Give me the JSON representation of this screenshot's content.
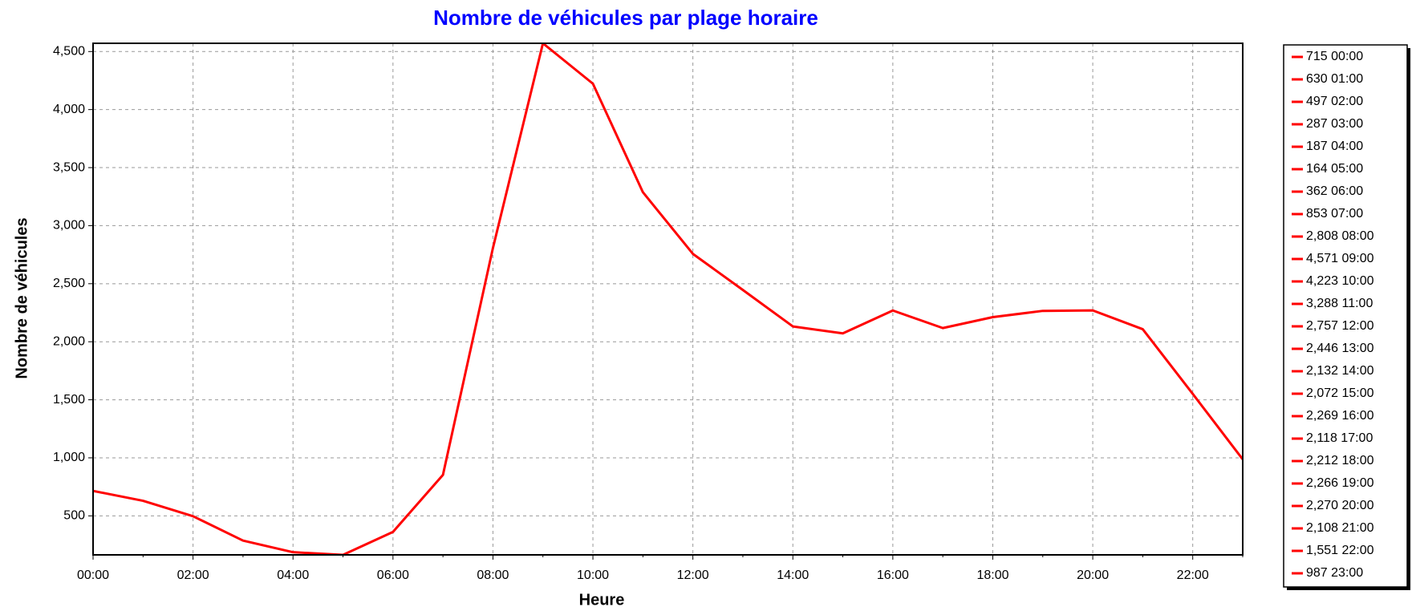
{
  "chart_data": {
    "type": "line",
    "title": "Nombre de véhicules par plage horaire",
    "x_label": "Heure",
    "y_label": "Nombre de véhicules",
    "categories": [
      "00:00",
      null,
      "02:00",
      null,
      "04:00",
      null,
      "06:00",
      null,
      "08:00",
      null,
      "10:00",
      null,
      "12:00",
      null,
      "14:00",
      null,
      "16:00",
      null,
      "18:00",
      null,
      "20:00",
      null,
      "22:00",
      null
    ],
    "series": [
      {
        "color": "#ff0000",
        "values": [
          715,
          630,
          497,
          287,
          187,
          164,
          362,
          853,
          2808,
          4571,
          4223,
          3288,
          2757,
          2446,
          2132,
          2072,
          2269,
          2118,
          2212,
          2266,
          2270,
          2108,
          1551,
          987
        ]
      }
    ],
    "legend": [
      "715 00:00",
      "630 01:00",
      "497 02:00",
      "287 03:00",
      "187 04:00",
      "164 05:00",
      "362 06:00",
      "853 07:00",
      "2,808 08:00",
      "4,571 09:00",
      "4,223 10:00",
      "3,288 11:00",
      "2,757 12:00",
      "2,446 13:00",
      "2,132 14:00",
      "2,072 15:00",
      "2,269 16:00",
      "2,118 17:00",
      "2,212 18:00",
      "2,266 19:00",
      "2,270 20:00",
      "2,108 21:00",
      "1,551 22:00",
      "987 23:00"
    ],
    "ylim": [
      164,
      4571
    ],
    "yticks": [
      {
        "value": 500,
        "label": "500"
      },
      {
        "value": 1000,
        "label": "1,000"
      },
      {
        "value": 1500,
        "label": "1,500"
      },
      {
        "value": 2000,
        "label": "2,000"
      },
      {
        "value": 2500,
        "label": "2,500"
      },
      {
        "value": 3000,
        "label": "3,000"
      },
      {
        "value": 3500,
        "label": "3,500"
      },
      {
        "value": 4000,
        "label": "4,000"
      },
      {
        "value": 4500,
        "label": "4,500"
      }
    ],
    "grid": true,
    "legend_position": "right"
  }
}
